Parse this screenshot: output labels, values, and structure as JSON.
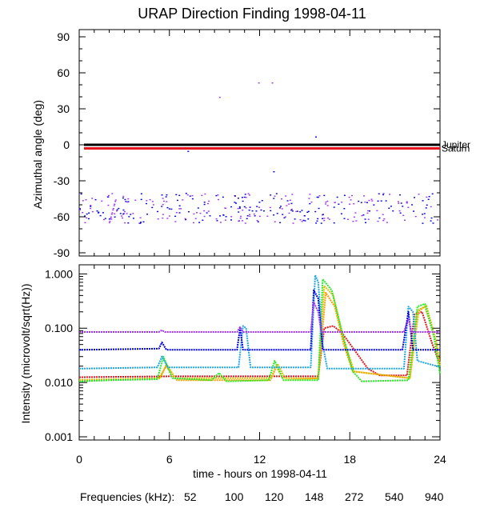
{
  "title": "URAP Direction Finding  1998-04-11",
  "freq_legend": {
    "label": "Frequencies (kHz):",
    "items": [
      {
        "text": "52",
        "color": "#e8141d"
      },
      {
        "text": "100",
        "color": "#ff9900"
      },
      {
        "text": "120",
        "color": "#ddbb00"
      },
      {
        "text": "148",
        "color": "#22ee22"
      },
      {
        "text": "272",
        "color": "#1fa8e8"
      },
      {
        "text": "540",
        "color": "#0000dd"
      },
      {
        "text": "940",
        "color": "#a033f0"
      }
    ]
  },
  "chart_data": [
    {
      "type": "scatter",
      "ylabel": "Azimuthal angle (deg)",
      "xlim": [
        0,
        24
      ],
      "ylim": [
        -90,
        90
      ],
      "yticks": [
        "90",
        "60",
        "30",
        "0",
        "-30",
        "-60",
        "-90"
      ],
      "reference_lines": [
        {
          "name": "Jupiter",
          "y": 0,
          "color": "#000000"
        },
        {
          "name": "Saturn",
          "y": -3,
          "color": "#e8141d"
        }
      ],
      "scatter_band": {
        "x_range": [
          0,
          24
        ],
        "y_range": [
          -65,
          -40
        ],
        "center": -52,
        "colors": [
          "#0000dd",
          "#a033f0"
        ]
      },
      "outliers": [
        {
          "x": 7.2,
          "y": -5,
          "color": "#0000dd"
        },
        {
          "x": 9.3,
          "y": 40,
          "color": "#a033f0"
        },
        {
          "x": 11.9,
          "y": 52,
          "color": "#a033f0"
        },
        {
          "x": 12.8,
          "y": 52,
          "color": "#a033f0"
        },
        {
          "x": 12.9,
          "y": -22,
          "color": "#0000dd"
        },
        {
          "x": 15.7,
          "y": 7,
          "color": "#0000dd"
        }
      ]
    },
    {
      "type": "line",
      "ylabel": "Intensity (microvolt/sqrt(Hz))",
      "xlabel": "time - hours on 1998-04-11",
      "yscale": "log",
      "xlim": [
        0,
        24
      ],
      "ylim": [
        0.001,
        1.2
      ],
      "xticks": [
        "0",
        "6",
        "12",
        "18",
        "24"
      ],
      "yticks": [
        "1.000",
        "0.100",
        "0.010",
        "0.001"
      ],
      "series": [
        {
          "name": "52",
          "color": "#e8141d",
          "baseline": 0.0125,
          "points": [
            [
              0,
              0.0125
            ],
            [
              6,
              0.013
            ],
            [
              15.9,
              0.013
            ],
            [
              16.3,
              0.1
            ],
            [
              16.9,
              0.11
            ],
            [
              17.5,
              0.08
            ],
            [
              18.3,
              0.04
            ],
            [
              19.2,
              0.018
            ],
            [
              20,
              0.0135
            ],
            [
              21.8,
              0.0135
            ],
            [
              22.3,
              0.18
            ],
            [
              22.8,
              0.2
            ],
            [
              23.5,
              0.05
            ],
            [
              24,
              0.022
            ]
          ]
        },
        {
          "name": "100",
          "color": "#ff9900",
          "baseline": 0.0115,
          "points": [
            [
              0,
              0.011
            ],
            [
              5.3,
              0.012
            ],
            [
              5.8,
              0.02
            ],
            [
              6.5,
              0.011
            ],
            [
              12.7,
              0.011
            ],
            [
              13.1,
              0.02
            ],
            [
              13.6,
              0.011
            ],
            [
              15.9,
              0.012
            ],
            [
              16.4,
              0.45
            ],
            [
              17,
              0.25
            ],
            [
              17.6,
              0.05
            ],
            [
              18.2,
              0.016
            ],
            [
              22,
              0.012
            ],
            [
              22.5,
              0.2
            ],
            [
              23,
              0.25
            ],
            [
              23.7,
              0.06
            ],
            [
              24,
              0.02
            ]
          ]
        },
        {
          "name": "120",
          "color": "#ddbb00",
          "baseline": 0.0112,
          "points": [
            [
              0,
              0.0112
            ],
            [
              5.4,
              0.012
            ],
            [
              5.8,
              0.022
            ],
            [
              6.4,
              0.012
            ],
            [
              12.8,
              0.012
            ],
            [
              13.2,
              0.022
            ],
            [
              13.7,
              0.012
            ],
            [
              15.9,
              0.012
            ],
            [
              16.3,
              0.6
            ],
            [
              16.9,
              0.4
            ],
            [
              17.6,
              0.06
            ],
            [
              18.3,
              0.016
            ],
            [
              22,
              0.012
            ],
            [
              22.6,
              0.22
            ],
            [
              23.1,
              0.26
            ],
            [
              23.8,
              0.05
            ],
            [
              24,
              0.02
            ]
          ]
        },
        {
          "name": "148",
          "color": "#22ee22",
          "baseline": 0.011,
          "points": [
            [
              0,
              0.0105
            ],
            [
              2,
              0.011
            ],
            [
              5.2,
              0.0115
            ],
            [
              5.6,
              0.03
            ],
            [
              6.2,
              0.012
            ],
            [
              8.8,
              0.011
            ],
            [
              9.3,
              0.015
            ],
            [
              9.8,
              0.0105
            ],
            [
              12.6,
              0.011
            ],
            [
              13,
              0.025
            ],
            [
              13.6,
              0.011
            ],
            [
              15.9,
              0.011
            ],
            [
              16.2,
              0.8
            ],
            [
              16.8,
              0.5
            ],
            [
              17.5,
              0.08
            ],
            [
              18.2,
              0.016
            ],
            [
              18.8,
              0.0105
            ],
            [
              21.9,
              0.011
            ],
            [
              22.5,
              0.25
            ],
            [
              23,
              0.28
            ],
            [
              23.6,
              0.07
            ],
            [
              24,
              0.014
            ]
          ]
        },
        {
          "name": "272",
          "color": "#1fa8e8",
          "baseline": 0.018,
          "points": [
            [
              0,
              0.018
            ],
            [
              5.2,
              0.019
            ],
            [
              5.5,
              0.03
            ],
            [
              5.9,
              0.019
            ],
            [
              10.6,
              0.019
            ],
            [
              10.9,
              0.11
            ],
            [
              11.1,
              0.1
            ],
            [
              11.4,
              0.019
            ],
            [
              15.4,
              0.019
            ],
            [
              15.7,
              0.95
            ],
            [
              15.9,
              0.7
            ],
            [
              16.2,
              0.05
            ],
            [
              16.5,
              0.018
            ],
            [
              21.6,
              0.018
            ],
            [
              21.9,
              0.25
            ],
            [
              22.2,
              0.2
            ],
            [
              22.5,
              0.025
            ],
            [
              23.8,
              0.02
            ],
            [
              24,
              0.02
            ]
          ]
        },
        {
          "name": "540",
          "color": "#0000dd",
          "baseline": 0.04,
          "points": [
            [
              0,
              0.04
            ],
            [
              5.3,
              0.042
            ],
            [
              5.5,
              0.055
            ],
            [
              5.8,
              0.04
            ],
            [
              10.5,
              0.04
            ],
            [
              10.7,
              0.1
            ],
            [
              10.9,
              0.04
            ],
            [
              15.4,
              0.04
            ],
            [
              15.6,
              0.5
            ],
            [
              15.9,
              0.35
            ],
            [
              16.2,
              0.04
            ],
            [
              21.5,
              0.04
            ],
            [
              21.9,
              0.2
            ],
            [
              22.2,
              0.04
            ],
            [
              24,
              0.04
            ]
          ]
        },
        {
          "name": "940",
          "color": "#a033f0",
          "baseline": 0.085,
          "points": [
            [
              0,
              0.085
            ],
            [
              5.3,
              0.085
            ],
            [
              5.5,
              0.092
            ],
            [
              5.7,
              0.085
            ],
            [
              10.5,
              0.085
            ],
            [
              10.7,
              0.105
            ],
            [
              10.9,
              0.085
            ],
            [
              15.4,
              0.085
            ],
            [
              15.6,
              0.3
            ],
            [
              15.9,
              0.2
            ],
            [
              16.1,
              0.085
            ],
            [
              21.6,
              0.085
            ],
            [
              21.9,
              0.15
            ],
            [
              22.1,
              0.085
            ],
            [
              24,
              0.085
            ]
          ]
        }
      ]
    }
  ]
}
